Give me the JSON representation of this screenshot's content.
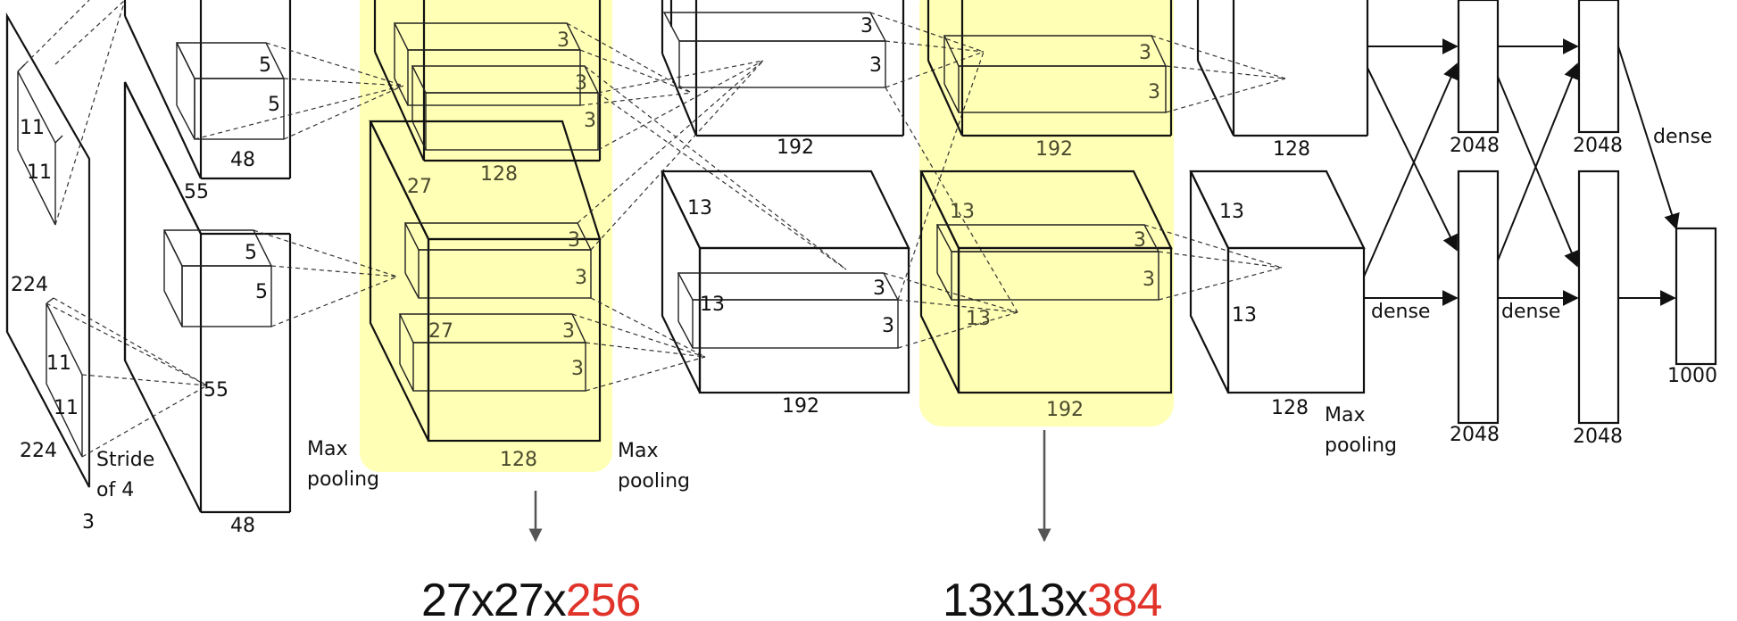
{
  "highlight_color": "#ffff99",
  "caption_accent_color": "#e0342a",
  "labels": {
    "input_224_side": "224",
    "input_224_bottom": "224",
    "input_depth": "3",
    "kernel1_h": "11",
    "kernel1_w": "11",
    "kernel2_h": "11",
    "kernel2_w": "11",
    "stride": [
      "Stride",
      "of 4"
    ],
    "conv1_side": "55",
    "conv1_depth_top": "48",
    "conv1_depth_bottom": "48",
    "conv1_point": "55",
    "k2_top_h": "5",
    "k2_top_w": "5",
    "k2_bot_h": "5",
    "k2_bot_w": "5",
    "pool1": [
      "Max",
      "pooling"
    ],
    "conv2_side": "27",
    "conv2_inner": "27",
    "conv2_depth_top": "128",
    "conv2_depth_bottom": "128",
    "k3_a": "3",
    "k3_b": "3",
    "k3_c": "3",
    "k3_d": "3",
    "k3_e": "3",
    "k3_f": "3",
    "k3_g": "3",
    "pool2": [
      "Max",
      "pooling"
    ],
    "conv3_k_top_a": "3",
    "conv3_k_top_b": "3",
    "conv3_depth_top": "192",
    "conv3_side": "13",
    "conv3_inner": "13",
    "conv3_k_bot_a": "3",
    "conv3_k_bot_b": "3",
    "conv3_depth_bottom": "192",
    "conv4_k_top_a": "3",
    "conv4_k_top_b": "3",
    "conv4_depth_top": "192",
    "conv4_side": "13",
    "conv4_inner": "13",
    "conv4_k_bot_a": "3",
    "conv4_k_bot_b": "3",
    "conv4_depth_bottom": "192",
    "conv5_depth_top": "128",
    "conv5_side": "13",
    "conv5_inner": "13",
    "conv5_depth_bottom": "128",
    "pool3": [
      "Max",
      "pooling"
    ],
    "dense_1": "dense",
    "dense_2": "dense",
    "dense_3": "dense",
    "fc6_top": "2048",
    "fc6_bottom": "2048",
    "fc7_top": "2048",
    "fc7_bottom": "2048",
    "output": "1000"
  },
  "captions": {
    "left": {
      "prefix": "27x27x",
      "accent": "256"
    },
    "right": {
      "prefix": "13x13x",
      "accent": "384"
    }
  }
}
